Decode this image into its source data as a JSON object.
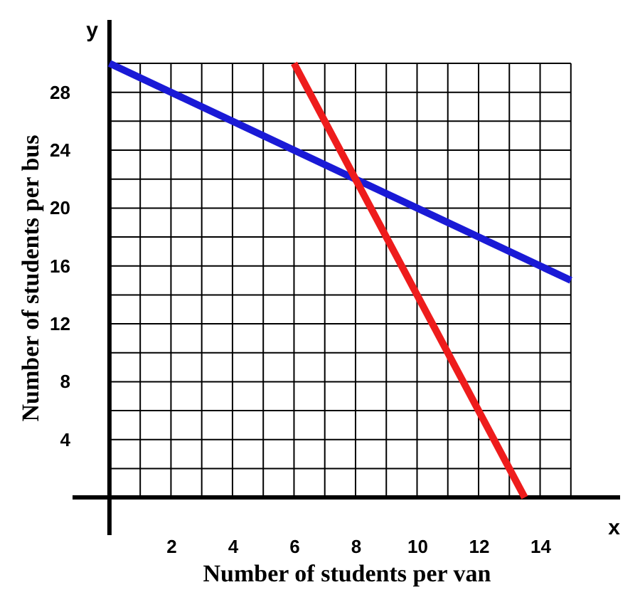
{
  "chart_data": {
    "type": "line",
    "xlabel": "Number of students per van",
    "ylabel": "Number of students per bus",
    "annotations": [
      "x",
      "y"
    ],
    "xlim": [
      -1.2,
      16.6
    ],
    "ylim": [
      -2.6,
      33
    ],
    "xticks": [
      {
        "value": 0,
        "label": null
      },
      {
        "value": 1,
        "label": null
      },
      2,
      {
        "value": 3,
        "label": null
      },
      4,
      {
        "value": 5,
        "label": null
      },
      6,
      {
        "value": 7,
        "label": null
      },
      8,
      {
        "value": 9,
        "label": null
      },
      10,
      {
        "value": 11,
        "label": null
      },
      12,
      {
        "value": 13,
        "label": null
      },
      14,
      {
        "value": 15,
        "label": null
      }
    ],
    "yticks": [
      {
        "value": 0,
        "label": null
      },
      {
        "value": 2,
        "label": null
      },
      4,
      {
        "value": 6,
        "label": null
      },
      8,
      {
        "value": 10,
        "label": null
      },
      12,
      {
        "value": 14,
        "label": null
      },
      16,
      {
        "value": 18,
        "label": null
      },
      20,
      {
        "value": 22,
        "label": null
      },
      24,
      {
        "value": 26,
        "label": null
      },
      28,
      {
        "value": 30,
        "label": null
      }
    ],
    "grid": true,
    "marker": "none",
    "line_style": "solid",
    "series": [
      {
        "color": "#1a1ad6",
        "x": [
          0,
          15
        ],
        "values": [
          30,
          15
        ]
      },
      {
        "color": "#ee1c1c",
        "x": [
          6,
          13.5
        ],
        "values": [
          30,
          0
        ]
      }
    ]
  }
}
